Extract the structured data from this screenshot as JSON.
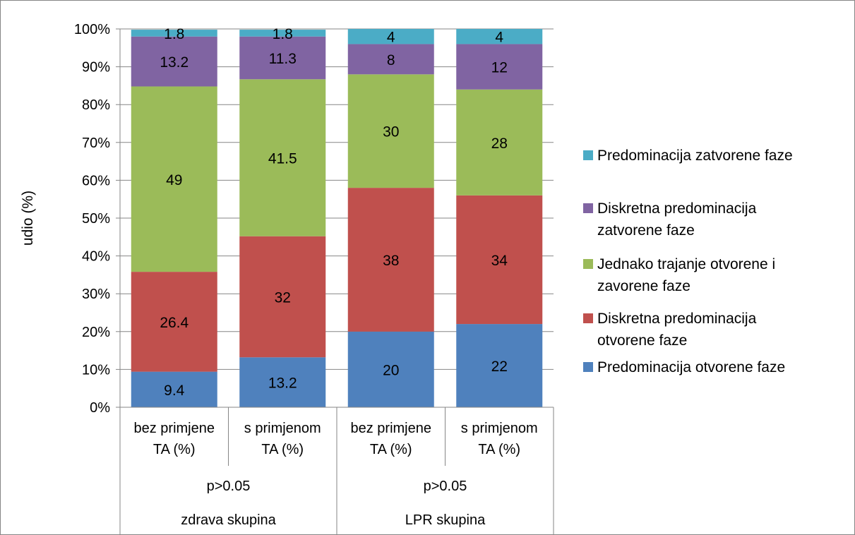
{
  "chart_data": {
    "type": "bar",
    "stacked": true,
    "percent_stacked": true,
    "ylabel": "udio (%)",
    "ylim": [
      0,
      100
    ],
    "yticks": [
      "0%",
      "10%",
      "20%",
      "30%",
      "40%",
      "50%",
      "60%",
      "70%",
      "80%",
      "90%",
      "100%"
    ],
    "grid": true,
    "legend_position": "right",
    "categories": [
      {
        "label_line1": "bez primjene",
        "label_line2": "TA (%)"
      },
      {
        "label_line1": "s primjenom",
        "label_line2": "TA (%)"
      },
      {
        "label_line1": "bez primjene",
        "label_line2": "TA (%)"
      },
      {
        "label_line1": "s primjenom",
        "label_line2": "TA (%)"
      }
    ],
    "groups": [
      {
        "p_value": "p>0.05",
        "name": "zdrava skupina"
      },
      {
        "p_value": "p>0.05",
        "name": "LPR skupina"
      }
    ],
    "series": [
      {
        "name": "Predominacija otvorene faze",
        "color": "#4F81BD",
        "values": [
          9.4,
          13.2,
          20,
          22
        ],
        "labels": [
          "9.4",
          "13.2",
          "20",
          "22"
        ]
      },
      {
        "name": "Diskretna predominacija otvorene faze",
        "color": "#C0504D",
        "values": [
          26.4,
          32,
          38,
          34
        ],
        "labels": [
          "26.4",
          "32",
          "38",
          "34"
        ]
      },
      {
        "name": "Jednako trajanje otvorene i zavorene faze",
        "color": "#9BBB59",
        "values": [
          49,
          41.5,
          30,
          28
        ],
        "labels": [
          "49",
          "41.5",
          "30",
          "28"
        ]
      },
      {
        "name": "Diskretna predominacija zatvorene faze",
        "color": "#8064A2",
        "values": [
          13.2,
          11.3,
          8,
          12
        ],
        "labels": [
          "13.2",
          "11.3",
          "8",
          "12"
        ]
      },
      {
        "name": "Predominacija zatvorene faze",
        "color": "#4BACC6",
        "values": [
          1.8,
          1.8,
          4,
          4
        ],
        "labels": [
          "1.8",
          "1.8",
          "4",
          "4"
        ]
      }
    ],
    "legend_entries": [
      {
        "line1": "Predominacija zatvorene faze",
        "line2": "",
        "color": "#4BACC6"
      },
      {
        "line1": "Diskretna predominacija",
        "line2": "zatvorene faze",
        "color": "#8064A2"
      },
      {
        "line1": "Jednako trajanje otvorene i",
        "line2": "zavorene faze",
        "color": "#9BBB59"
      },
      {
        "line1": "Diskretna predominacija",
        "line2": "otvorene faze",
        "color": "#C0504D"
      },
      {
        "line1": "Predominacija otvorene faze",
        "line2": "",
        "color": "#4F81BD"
      }
    ]
  }
}
